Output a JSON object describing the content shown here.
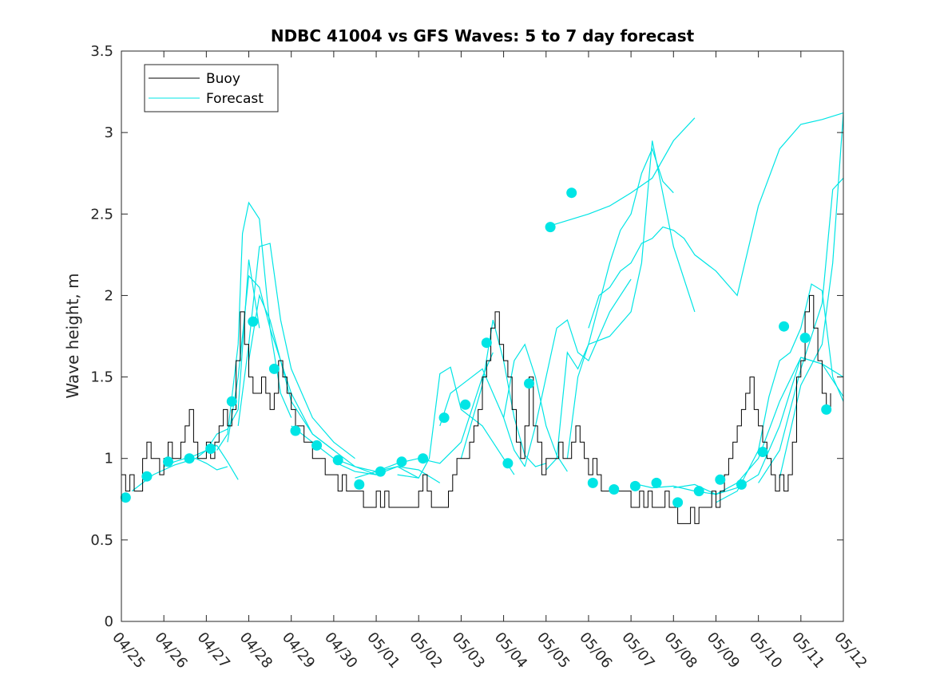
{
  "chart_data": {
    "type": "line",
    "title": "NDBC 41004 vs GFS Waves: 5 to 7 day forecast",
    "xlabel": "",
    "ylabel": "Wave height, m",
    "xlim": [
      0,
      17
    ],
    "ylim": [
      0,
      3.5
    ],
    "x_tick_labels": [
      "04/25",
      "04/26",
      "04/27",
      "04/28",
      "04/29",
      "04/30",
      "05/01",
      "05/02",
      "05/03",
      "05/04",
      "05/05",
      "05/06",
      "05/07",
      "05/08",
      "05/09",
      "05/10",
      "05/11",
      "05/12"
    ],
    "y_ticks": [
      0,
      0.5,
      1,
      1.5,
      2,
      2.5,
      3,
      3.5
    ],
    "y_tick_labels": [
      "0",
      "0.5",
      "1",
      "1.5",
      "2",
      "2.5",
      "3",
      "3.5"
    ],
    "x_unit": "days since 04/25",
    "legend": {
      "position": "top-left",
      "entries": [
        "Buoy",
        "Forecast"
      ]
    },
    "colors": {
      "buoy": "#000000",
      "forecast": "#00e5e5",
      "axes": "#262626"
    },
    "buoy": {
      "name": "Buoy",
      "x": [
        0,
        0.1,
        0.2,
        0.3,
        0.4,
        0.5,
        0.6,
        0.7,
        0.8,
        0.9,
        1,
        1.1,
        1.2,
        1.3,
        1.4,
        1.5,
        1.6,
        1.7,
        1.8,
        1.9,
        2,
        2.1,
        2.2,
        2.3,
        2.4,
        2.5,
        2.6,
        2.7,
        2.8,
        2.9,
        3,
        3.1,
        3.2,
        3.3,
        3.4,
        3.5,
        3.6,
        3.7,
        3.8,
        3.9,
        4,
        4.1,
        4.2,
        4.3,
        4.4,
        4.5,
        4.6,
        4.7,
        4.8,
        4.9,
        5,
        5.1,
        5.2,
        5.3,
        5.4,
        5.5,
        5.6,
        5.7,
        5.8,
        5.9,
        6,
        6.1,
        6.2,
        6.3,
        6.4,
        6.5,
        6.6,
        6.7,
        6.8,
        6.9,
        7,
        7.1,
        7.2,
        7.3,
        7.4,
        7.5,
        7.6,
        7.7,
        7.8,
        7.9,
        8,
        8.1,
        8.2,
        8.3,
        8.4,
        8.5,
        8.6,
        8.7,
        8.8,
        8.9,
        9,
        9.1,
        9.2,
        9.3,
        9.4,
        9.5,
        9.6,
        9.7,
        9.8,
        9.9,
        10,
        10.1,
        10.2,
        10.3,
        10.4,
        10.5,
        10.6,
        10.7,
        10.8,
        10.9,
        11,
        11.1,
        11.2,
        11.3,
        11.4,
        11.5,
        11.6,
        11.7,
        11.8,
        11.9,
        12,
        12.1,
        12.2,
        12.3,
        12.4,
        12.5,
        12.6,
        12.7,
        12.8,
        12.9,
        13,
        13.1,
        13.2,
        13.3,
        13.4,
        13.5,
        13.6,
        13.7,
        13.8,
        13.9,
        14,
        14.1,
        14.2,
        14.3,
        14.4,
        14.5,
        14.6,
        14.7,
        14.8,
        14.9,
        15,
        15.1,
        15.2,
        15.3,
        15.4,
        15.5,
        15.6,
        15.7,
        15.8,
        15.9,
        16,
        16.1,
        16.2,
        16.3,
        16.4,
        16.5,
        16.6,
        16.7
      ],
      "y": [
        0.9,
        0.8,
        0.9,
        0.8,
        0.8,
        1.0,
        1.1,
        1.0,
        1.0,
        0.9,
        1.0,
        1.1,
        1.0,
        1.0,
        1.1,
        1.2,
        1.3,
        1.1,
        1.0,
        1.0,
        1.1,
        1.0,
        1.1,
        1.2,
        1.3,
        1.2,
        1.3,
        1.6,
        1.9,
        1.7,
        1.5,
        1.4,
        1.4,
        1.5,
        1.4,
        1.3,
        1.4,
        1.6,
        1.5,
        1.4,
        1.3,
        1.2,
        1.2,
        1.1,
        1.1,
        1.0,
        1.0,
        1.0,
        0.9,
        0.9,
        0.9,
        0.8,
        0.9,
        0.8,
        0.8,
        0.8,
        0.8,
        0.7,
        0.7,
        0.7,
        0.8,
        0.7,
        0.8,
        0.7,
        0.7,
        0.7,
        0.7,
        0.7,
        0.7,
        0.7,
        0.8,
        0.9,
        0.8,
        0.7,
        0.7,
        0.7,
        0.7,
        0.8,
        0.9,
        1.0,
        1.0,
        1.0,
        1.1,
        1.2,
        1.3,
        1.5,
        1.6,
        1.8,
        1.9,
        1.7,
        1.6,
        1.5,
        1.3,
        1.1,
        1.0,
        1.2,
        1.5,
        1.2,
        1.1,
        0.9,
        1.0,
        1.0,
        1.0,
        1.1,
        1.0,
        1.0,
        1.1,
        1.2,
        1.1,
        1.0,
        0.9,
        1.0,
        0.9,
        0.8,
        0.8,
        0.8,
        0.8,
        0.8,
        0.8,
        0.8,
        0.7,
        0.7,
        0.8,
        0.7,
        0.8,
        0.7,
        0.7,
        0.7,
        0.8,
        0.7,
        0.7,
        0.6,
        0.6,
        0.6,
        0.7,
        0.6,
        0.7,
        0.7,
        0.7,
        0.8,
        0.7,
        0.8,
        0.9,
        1.0,
        1.1,
        1.2,
        1.3,
        1.4,
        1.5,
        1.3,
        1.2,
        1.1,
        1.0,
        0.9,
        0.8,
        0.9,
        0.8,
        0.9,
        1.1,
        1.5,
        1.6,
        1.9,
        2.0,
        1.8,
        1.6,
        1.4,
        1.3,
        1.4
      ]
    },
    "forecast_runs": [
      {
        "x": [
          0.25,
          0.5,
          0.75,
          1.0,
          1.25,
          1.5,
          1.75,
          2.0,
          2.25,
          2.5
        ],
        "y": [
          0.8,
          0.85,
          0.9,
          0.93,
          0.96,
          0.98,
          1.0,
          0.97,
          0.93,
          0.95
        ]
      },
      {
        "x": [
          1.0,
          1.25,
          1.5,
          1.75,
          2.0,
          2.25,
          2.5,
          2.75
        ],
        "y": [
          0.95,
          0.98,
          1.0,
          1.02,
          1.05,
          1.08,
          0.98,
          0.87
        ]
      },
      {
        "x": [
          1.75,
          2.0,
          2.25,
          2.5,
          2.75,
          3.0,
          3.25
        ],
        "y": [
          1.0,
          1.05,
          1.15,
          1.18,
          1.3,
          2.22,
          1.8
        ]
      },
      {
        "x": [
          2.25,
          2.5,
          2.75,
          2.85,
          3.0,
          3.25,
          3.5,
          3.75,
          4.0
        ],
        "y": [
          1.05,
          1.15,
          1.7,
          2.38,
          2.57,
          2.47,
          1.8,
          1.4,
          1.25
        ]
      },
      {
        "x": [
          2.5,
          2.75,
          3.0,
          3.25,
          3.5,
          3.75,
          4.0,
          4.5,
          5.0
        ],
        "y": [
          1.1,
          1.5,
          2.12,
          2.05,
          1.8,
          1.6,
          1.35,
          1.15,
          1.05
        ]
      },
      {
        "x": [
          2.75,
          3.0,
          3.25,
          3.5,
          3.75,
          4.0,
          4.5,
          5.0,
          5.5
        ],
        "y": [
          1.2,
          1.7,
          2.3,
          2.32,
          1.85,
          1.55,
          1.25,
          1.1,
          1.0
        ]
      },
      {
        "x": [
          3.0,
          3.25,
          3.5,
          3.75,
          4.0,
          4.5,
          5.0,
          5.5,
          6.0
        ],
        "y": [
          1.6,
          2.0,
          1.85,
          1.6,
          1.4,
          1.15,
          1.05,
          0.95,
          0.9
        ]
      },
      {
        "x": [
          4.0,
          4.5,
          5.0,
          5.5,
          6.0,
          6.5,
          7.0
        ],
        "y": [
          1.2,
          1.1,
          1.0,
          0.95,
          0.92,
          0.95,
          0.88
        ]
      },
      {
        "x": [
          5.0,
          5.5,
          6.0,
          6.5,
          7.0,
          7.5
        ],
        "y": [
          0.98,
          0.92,
          0.9,
          0.95,
          0.93,
          0.85
        ]
      },
      {
        "x": [
          5.5,
          6.0,
          6.5,
          7.0,
          7.5,
          8.0,
          8.5,
          8.75
        ],
        "y": [
          0.88,
          0.92,
          0.97,
          1.0,
          0.97,
          1.1,
          1.5,
          1.65
        ]
      },
      {
        "x": [
          6.5,
          7.0,
          7.25,
          7.5,
          7.75,
          8.0,
          8.5,
          9.0,
          9.25
        ],
        "y": [
          0.9,
          0.88,
          1.0,
          1.52,
          1.56,
          1.3,
          1.2,
          1.0,
          0.9
        ]
      },
      {
        "x": [
          7.5,
          7.75,
          8.0,
          8.5,
          9.0,
          9.25,
          9.5
        ],
        "y": [
          1.2,
          1.4,
          1.45,
          1.55,
          1.25,
          1.05,
          0.95
        ]
      },
      {
        "x": [
          8.0,
          8.5,
          8.75,
          9.0,
          9.25,
          9.5,
          9.75,
          10.0
        ],
        "y": [
          1.0,
          1.45,
          1.85,
          1.6,
          1.25,
          1.02,
          0.95,
          0.97
        ]
      },
      {
        "x": [
          9.0,
          9.25,
          9.5,
          9.75,
          10.0,
          10.25,
          10.5
        ],
        "y": [
          1.25,
          1.6,
          1.7,
          1.5,
          1.2,
          1.02,
          0.92
        ]
      },
      {
        "x": [
          9.5,
          9.75,
          10.0,
          10.25,
          10.5,
          10.75,
          11.0,
          11.25,
          11.5,
          11.75,
          12.0
        ],
        "y": [
          0.95,
          1.2,
          1.5,
          1.8,
          1.85,
          1.65,
          1.6,
          1.75,
          1.9,
          2.0,
          2.1
        ]
      },
      {
        "x": [
          10.0,
          10.25,
          10.5,
          10.75,
          11.0,
          11.25,
          11.5,
          11.75,
          12.0,
          12.25,
          12.5,
          12.75,
          13.0
        ],
        "y": [
          0.93,
          1.0,
          1.65,
          1.55,
          1.7,
          1.95,
          2.2,
          2.4,
          2.5,
          2.75,
          2.9,
          2.7,
          2.63
        ]
      },
      {
        "x": [
          10.5,
          10.75,
          11.0,
          11.5,
          12.0,
          12.25,
          12.5,
          13.0,
          13.5
        ],
        "y": [
          1.0,
          1.5,
          1.7,
          1.75,
          1.9,
          2.2,
          2.95,
          2.3,
          1.9
        ]
      },
      {
        "x": [
          11.0,
          11.25,
          11.5,
          11.75,
          12.0,
          12.25,
          12.5,
          12.75,
          13.0,
          13.25,
          13.5,
          14.0,
          14.5,
          15.0,
          15.5,
          16.0,
          16.5,
          17.0
        ],
        "y": [
          1.8,
          2.0,
          2.05,
          2.15,
          2.2,
          2.32,
          2.35,
          2.42,
          2.4,
          2.35,
          2.25,
          2.15,
          2.0,
          2.55,
          2.9,
          3.05,
          3.08,
          3.12
        ]
      },
      {
        "x": [
          10.0,
          11.0,
          11.5,
          12.0,
          12.5,
          13.0,
          13.5
        ],
        "y": [
          2.42,
          2.5,
          2.55,
          2.63,
          2.72,
          2.95,
          3.09
        ]
      },
      {
        "x": [
          12.0,
          12.5,
          13.0,
          13.5,
          14.0,
          14.5,
          15.0,
          15.5,
          16.0,
          16.5,
          17.0
        ],
        "y": [
          0.85,
          0.82,
          0.83,
          0.8,
          0.78,
          0.82,
          0.9,
          1.2,
          1.62,
          1.58,
          1.5
        ]
      },
      {
        "x": [
          13.0,
          13.5,
          14.0,
          14.5,
          15.0,
          15.5,
          16.0,
          16.5,
          17.0
        ],
        "y": [
          0.82,
          0.84,
          0.78,
          0.85,
          1.0,
          1.35,
          1.62,
          1.58,
          1.38
        ]
      },
      {
        "x": [
          14.0,
          14.5,
          15.0,
          15.25,
          15.5,
          15.75,
          16.0,
          16.25,
          16.5,
          16.75,
          17.0
        ],
        "y": [
          0.73,
          0.8,
          1.05,
          1.38,
          1.6,
          1.65,
          1.8,
          2.07,
          2.03,
          1.5,
          1.35
        ]
      },
      {
        "x": [
          15.0,
          15.5,
          16.0,
          16.25,
          16.5,
          16.75,
          17.0
        ],
        "y": [
          0.85,
          1.05,
          1.55,
          1.75,
          1.95,
          2.65,
          2.72
        ]
      },
      {
        "x": [
          15.5,
          16.0,
          16.5,
          16.75,
          17.0
        ],
        "y": [
          0.88,
          1.45,
          1.7,
          2.2,
          3.12
        ]
      }
    ],
    "forecast_points": {
      "name": "Forecast",
      "x": [
        0.1,
        0.6,
        1.1,
        1.6,
        2.1,
        2.6,
        3.1,
        3.6,
        4.1,
        4.6,
        5.1,
        5.6,
        6.1,
        6.6,
        7.1,
        7.6,
        8.1,
        8.6,
        9.1,
        9.6,
        10.1,
        10.6,
        11.1,
        11.6,
        12.1,
        12.6,
        13.1,
        13.6,
        14.1,
        14.6,
        15.1,
        15.6,
        16.1,
        16.6
      ],
      "y": [
        0.76,
        0.89,
        0.98,
        1.0,
        1.06,
        1.35,
        1.84,
        1.55,
        1.17,
        1.08,
        0.99,
        0.84,
        0.92,
        0.98,
        1.0,
        1.25,
        1.33,
        1.71,
        0.97,
        1.46,
        2.42,
        2.63,
        0.85,
        0.81,
        0.83,
        0.85,
        0.73,
        0.8,
        0.87,
        0.84,
        1.04,
        1.81,
        1.74,
        1.3
      ]
    }
  }
}
